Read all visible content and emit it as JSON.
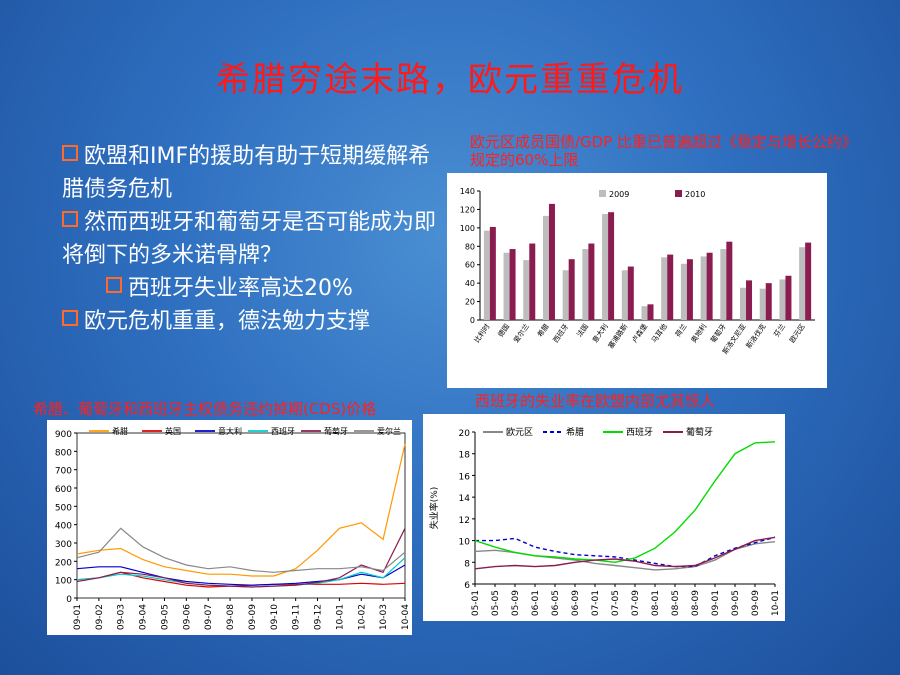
{
  "slide": {
    "title": "希腊穷途末路，欧元重重危机",
    "bullets": [
      {
        "text": "欧盟和IMF的援助有助于短期缓解希腊债务危机",
        "level": 1
      },
      {
        "text": "然而西班牙和葡萄牙是否可能成为即将倒下的多米诺骨牌？",
        "level": 1
      },
      {
        "text": "西班牙失业率高达20%",
        "level": 2
      },
      {
        "text": "欧元危机重重，德法勉力支撑",
        "level": 1
      }
    ]
  },
  "captions": {
    "debt": "欧元区成员国债/GDP 比重已普遍超过《稳定与增长公约》规定的60%上限",
    "cds": "希腊、葡萄牙和西班牙主权债务违约掉期(CDS)价格",
    "unemp": "西班牙的失业率在欧盟内部尤其惊人"
  },
  "chart_data": [
    {
      "id": "debt",
      "type": "bar",
      "title": "",
      "categories": [
        "比利时",
        "德国",
        "爱尔兰",
        "希腊",
        "西班牙",
        "法国",
        "意大利",
        "塞浦路斯",
        "卢森堡",
        "马耳他",
        "荷兰",
        "奥地利",
        "葡萄牙",
        "斯洛文尼亚",
        "斯洛伐克",
        "芬兰",
        "欧元区"
      ],
      "series": [
        {
          "name": "2009",
          "values": [
            97,
            73,
            65,
            113,
            54,
            77,
            115,
            54,
            15,
            68,
            61,
            69,
            77,
            35,
            34,
            44,
            79
          ],
          "color": "#bdbdbd"
        },
        {
          "name": "2010",
          "values": [
            101,
            77,
            83,
            126,
            66,
            83,
            117,
            58,
            17,
            71,
            66,
            73,
            85,
            43,
            40,
            48,
            84
          ],
          "color": "#8b1c4f"
        }
      ],
      "ylim": [
        0,
        140
      ],
      "yticks": [
        0,
        20,
        40,
        60,
        80,
        100,
        120,
        140
      ],
      "legend": "top"
    },
    {
      "id": "cds",
      "type": "line",
      "title": "",
      "x": [
        "09-01",
        "09-02",
        "09-03",
        "09-04",
        "09-05",
        "09-06",
        "09-07",
        "09-08",
        "09-09",
        "09-10",
        "09-11",
        "09-12",
        "10-01",
        "10-02",
        "10-03",
        "10-04"
      ],
      "series": [
        {
          "name": "希腊",
          "color": "#ff9900",
          "values": [
            240,
            260,
            270,
            210,
            170,
            150,
            130,
            130,
            120,
            120,
            160,
            260,
            380,
            410,
            320,
            840
          ]
        },
        {
          "name": "英国",
          "color": "#e00000",
          "values": [
            100,
            110,
            140,
            110,
            90,
            70,
            60,
            65,
            70,
            75,
            75,
            75,
            75,
            80,
            75,
            80
          ]
        },
        {
          "name": "意大利",
          "color": "#0000cc",
          "values": [
            160,
            170,
            170,
            140,
            110,
            90,
            80,
            75,
            70,
            75,
            80,
            90,
            100,
            130,
            110,
            180
          ]
        },
        {
          "name": "西班牙",
          "color": "#00cccc",
          "values": [
            100,
            110,
            130,
            120,
            100,
            80,
            70,
            65,
            60,
            65,
            70,
            80,
            100,
            140,
            110,
            220
          ]
        },
        {
          "name": "葡萄牙",
          "color": "#8b1c4f",
          "values": [
            90,
            110,
            140,
            130,
            110,
            80,
            70,
            65,
            60,
            65,
            70,
            85,
            110,
            180,
            140,
            380
          ]
        },
        {
          "name": "爱尔兰",
          "color": "#888888",
          "values": [
            220,
            250,
            380,
            280,
            220,
            180,
            160,
            170,
            150,
            140,
            150,
            160,
            160,
            170,
            150,
            250
          ]
        }
      ],
      "ylim": [
        0,
        900
      ],
      "yticks": [
        0,
        100,
        200,
        300,
        400,
        500,
        600,
        700,
        800,
        900
      ],
      "legend": "top"
    },
    {
      "id": "unemp",
      "type": "line",
      "title": "",
      "ylabel": "失业率(%)",
      "x": [
        "05-01",
        "05-05",
        "05-09",
        "06-01",
        "06-05",
        "06-09",
        "07-01",
        "07-05",
        "07-09",
        "08-01",
        "08-05",
        "08-09",
        "09-01",
        "09-05",
        "09-09",
        "10-01"
      ],
      "series": [
        {
          "name": "欧元区",
          "color": "#888888",
          "dash": false,
          "values": [
            9.0,
            9.1,
            8.9,
            8.6,
            8.4,
            8.2,
            7.9,
            7.7,
            7.5,
            7.3,
            7.4,
            7.6,
            8.2,
            9.2,
            9.7,
            9.9
          ]
        },
        {
          "name": "希腊",
          "color": "#0000cc",
          "dash": true,
          "values": [
            10.0,
            10.0,
            10.2,
            9.4,
            9.0,
            8.7,
            8.6,
            8.5,
            8.2,
            7.9,
            7.6,
            7.6,
            8.6,
            9.3,
            9.8,
            10.3
          ]
        },
        {
          "name": "西班牙",
          "color": "#00dd00",
          "dash": false,
          "values": [
            10.0,
            9.4,
            8.9,
            8.6,
            8.5,
            8.3,
            8.2,
            8.0,
            8.4,
            9.3,
            10.8,
            12.8,
            15.5,
            18.0,
            19.0,
            19.1
          ]
        },
        {
          "name": "葡萄牙",
          "color": "#8b1c4f",
          "dash": false,
          "values": [
            7.4,
            7.6,
            7.7,
            7.6,
            7.7,
            8.0,
            8.2,
            8.3,
            8.1,
            7.7,
            7.6,
            7.7,
            8.4,
            9.2,
            10.0,
            10.3
          ]
        }
      ],
      "ylim": [
        6,
        20
      ],
      "yticks": [
        6,
        8,
        10,
        12,
        14,
        16,
        18,
        20
      ],
      "legend": "top"
    }
  ]
}
